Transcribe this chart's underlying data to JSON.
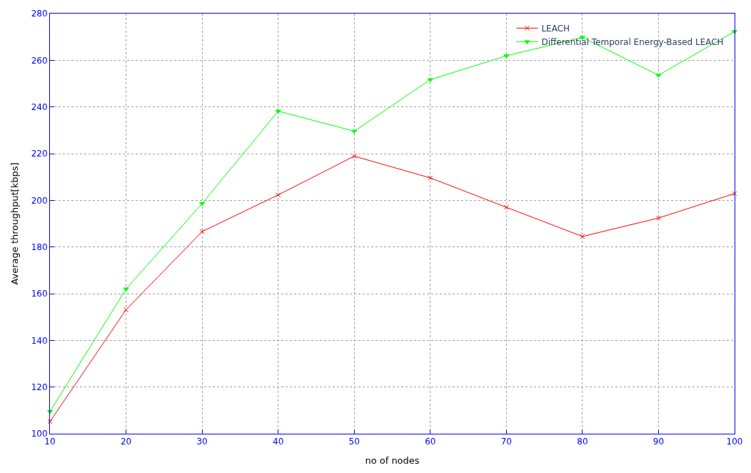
{
  "chart_data": {
    "type": "line",
    "xlabel": "no of nodes",
    "ylabel": "Average throughput[kbps]",
    "x": [
      10,
      20,
      30,
      40,
      50,
      60,
      70,
      80,
      90,
      100
    ],
    "series": [
      {
        "name": "LEACH",
        "color": "#ff0000",
        "marker": "cross",
        "values": [
          105.2,
          153.1,
          186.6,
          202.3,
          218.9,
          209.6,
          197.0,
          184.5,
          192.4,
          202.9
        ]
      },
      {
        "name": "Differential Temporal Energy-Based LEACH",
        "color": "#00ff00",
        "marker": "triangle",
        "values": [
          109.5,
          162.0,
          198.6,
          238.2,
          229.6,
          251.7,
          261.9,
          269.8,
          253.6,
          272.3
        ]
      }
    ],
    "xlim": [
      10,
      100
    ],
    "xticks": [
      10,
      20,
      30,
      40,
      50,
      60,
      70,
      80,
      90,
      100
    ],
    "ylim": [
      100,
      280
    ],
    "yticks": [
      100,
      120,
      140,
      160,
      180,
      200,
      220,
      240,
      260,
      280
    ],
    "grid": true,
    "legend": "top right",
    "line_style": "solid"
  }
}
